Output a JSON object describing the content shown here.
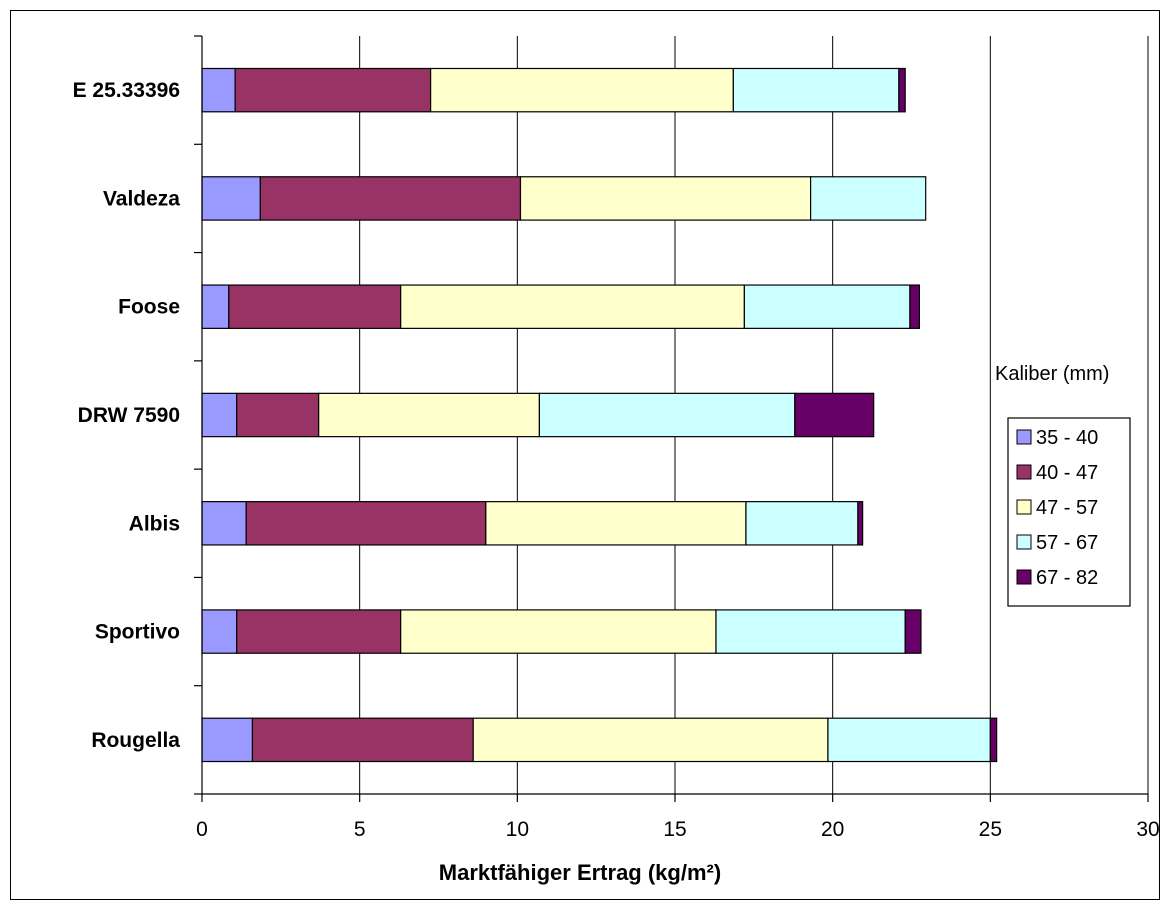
{
  "chart_data": {
    "type": "bar",
    "orientation": "horizontal",
    "stacked": true,
    "categories": [
      "Rougella",
      "Sportivo",
      "Albis",
      "DRW 7590",
      "Foose",
      "Valdeza",
      "E 25.33396"
    ],
    "series": [
      {
        "name": "35 - 40",
        "color": "#9999FF",
        "values": [
          1.6,
          1.1,
          1.4,
          1.1,
          0.85,
          1.85,
          1.05
        ]
      },
      {
        "name": "40 - 47",
        "color": "#993366",
        "values": [
          7.0,
          5.2,
          7.6,
          2.6,
          5.45,
          8.25,
          6.2
        ]
      },
      {
        "name": "47 - 57",
        "color": "#FFFFCC",
        "values": [
          11.25,
          10.0,
          8.25,
          7.0,
          10.9,
          9.2,
          9.6
        ]
      },
      {
        "name": "57 - 67",
        "color": "#CCFFFF",
        "values": [
          5.15,
          6.0,
          3.55,
          8.1,
          5.25,
          3.65,
          5.25
        ]
      },
      {
        "name": "67 - 82",
        "color": "#660066",
        "values": [
          0.2,
          0.5,
          0.15,
          2.5,
          0.3,
          0.0,
          0.2
        ]
      }
    ],
    "xlabel": "Marktfähiger Ertrag (kg/m²)",
    "xlim": [
      0,
      30
    ],
    "xticks": [
      "0",
      "5",
      "10",
      "15",
      "20",
      "25",
      "30"
    ],
    "grid": "vertical",
    "legend_title": "Kaliber (mm)",
    "legend_position": "right"
  }
}
